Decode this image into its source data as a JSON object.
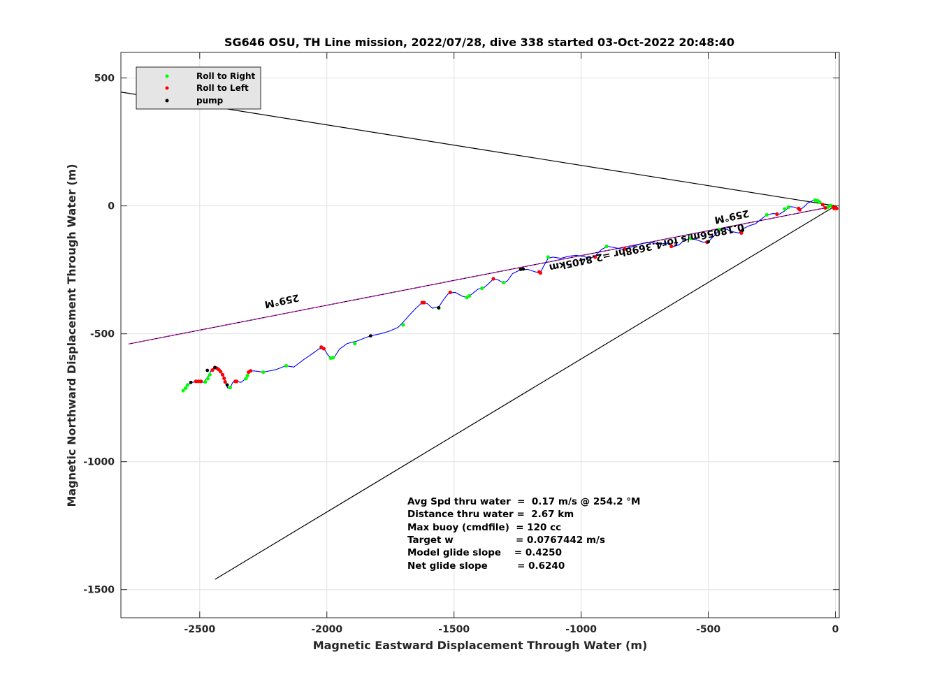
{
  "chart_data": {
    "type": "scatter",
    "title": "SG646 OSU, TH Line mission, 2022/07/28, dive 338 started 03-Oct-2022 20:48:40",
    "xlabel": "Magnetic Eastward Displacement Through Water (m)",
    "ylabel": "Magnetic Northward Displacement Through Water (m)",
    "xlim": [
      -2810,
      15
    ],
    "ylim": [
      -1610,
      600
    ],
    "xticks": [
      -2500,
      -2000,
      -1500,
      -1000,
      -500,
      0
    ],
    "yticks": [
      500,
      0,
      -500,
      -1000,
      -1500
    ],
    "xtick_labels": [
      "-2500",
      "-2000",
      "-1500",
      "-1000",
      "-500",
      "0"
    ],
    "ytick_labels": [
      "500",
      "0",
      "-500",
      "-1000",
      "-1500"
    ],
    "grid": true,
    "legend_position": "top-left",
    "legend": [
      {
        "label": "Roll to Right",
        "color": "#00ff00"
      },
      {
        "label": "Roll to Left",
        "color": "#ff0000"
      },
      {
        "label": "pump",
        "color": "#000000"
      }
    ],
    "track_color": "#0000ff",
    "track": [
      [
        -2565,
        -722
      ],
      [
        -2548,
        -700
      ],
      [
        -2530,
        -690
      ],
      [
        -2505,
        -686
      ],
      [
        -2485,
        -690
      ],
      [
        -2468,
        -668
      ],
      [
        -2455,
        -642
      ],
      [
        -2440,
        -632
      ],
      [
        -2425,
        -640
      ],
      [
        -2410,
        -660
      ],
      [
        -2400,
        -688
      ],
      [
        -2390,
        -712
      ],
      [
        -2380,
        -710
      ],
      [
        -2370,
        -690
      ],
      [
        -2355,
        -686
      ],
      [
        -2338,
        -690
      ],
      [
        -2318,
        -675
      ],
      [
        -2305,
        -647
      ],
      [
        -2288,
        -645
      ],
      [
        -2250,
        -650
      ],
      [
        -2200,
        -640
      ],
      [
        -2160,
        -625
      ],
      [
        -2130,
        -630
      ],
      [
        -2090,
        -600
      ],
      [
        -2060,
        -580
      ],
      [
        -2030,
        -558
      ],
      [
        -2010,
        -560
      ],
      [
        -1998,
        -580
      ],
      [
        -1985,
        -595
      ],
      [
        -1970,
        -590
      ],
      [
        -1950,
        -560
      ],
      [
        -1920,
        -538
      ],
      [
        -1880,
        -528
      ],
      [
        -1850,
        -516
      ],
      [
        -1828,
        -508
      ],
      [
        -1790,
        -500
      ],
      [
        -1755,
        -490
      ],
      [
        -1720,
        -475
      ],
      [
        -1700,
        -455
      ],
      [
        -1678,
        -430
      ],
      [
        -1650,
        -400
      ],
      [
        -1625,
        -378
      ],
      [
        -1605,
        -382
      ],
      [
        -1585,
        -400
      ],
      [
        -1560,
        -395
      ],
      [
        -1540,
        -365
      ],
      [
        -1520,
        -340
      ],
      [
        -1495,
        -338
      ],
      [
        -1470,
        -352
      ],
      [
        -1450,
        -358
      ],
      [
        -1430,
        -345
      ],
      [
        -1405,
        -325
      ],
      [
        -1385,
        -322
      ],
      [
        -1365,
        -305
      ],
      [
        -1345,
        -285
      ],
      [
        -1325,
        -290
      ],
      [
        -1305,
        -302
      ],
      [
        -1290,
        -293
      ],
      [
        -1270,
        -265
      ],
      [
        -1240,
        -250
      ],
      [
        -1210,
        -248
      ],
      [
        -1180,
        -258
      ],
      [
        -1160,
        -262
      ],
      [
        -1150,
        -240
      ],
      [
        -1130,
        -205
      ],
      [
        -1110,
        -200
      ],
      [
        -1080,
        -205
      ],
      [
        -1050,
        -197
      ],
      [
        -1020,
        -193
      ],
      [
        -990,
        -198
      ],
      [
        -965,
        -205
      ],
      [
        -945,
        -196
      ],
      [
        -920,
        -170
      ],
      [
        -895,
        -158
      ],
      [
        -870,
        -163
      ],
      [
        -835,
        -170
      ],
      [
        -800,
        -160
      ],
      [
        -770,
        -150
      ],
      [
        -740,
        -142
      ],
      [
        -715,
        -145
      ],
      [
        -690,
        -150
      ],
      [
        -665,
        -145
      ],
      [
        -640,
        -160
      ],
      [
        -615,
        -152
      ],
      [
        -595,
        -135
      ],
      [
        -570,
        -127
      ],
      [
        -545,
        -133
      ],
      [
        -520,
        -142
      ],
      [
        -500,
        -140
      ],
      [
        -480,
        -120
      ],
      [
        -455,
        -92
      ],
      [
        -430,
        -90
      ],
      [
        -410,
        -100
      ],
      [
        -380,
        -106
      ],
      [
        -365,
        -90
      ],
      [
        -340,
        -78
      ],
      [
        -315,
        -70
      ],
      [
        -292,
        -52
      ],
      [
        -270,
        -35
      ],
      [
        -245,
        -30
      ],
      [
        -220,
        -32
      ],
      [
        -200,
        -20
      ],
      [
        -180,
        -3
      ],
      [
        -160,
        -5
      ],
      [
        -140,
        -15
      ],
      [
        -125,
        -5
      ],
      [
        -110,
        10
      ],
      [
        -85,
        23
      ],
      [
        -70,
        20
      ],
      [
        -50,
        5
      ],
      [
        -40,
        -10
      ],
      [
        -28,
        -5
      ],
      [
        -20,
        3
      ],
      [
        -10,
        -2
      ],
      [
        -2,
        -5
      ],
      [
        5,
        -8
      ],
      [
        0,
        -12
      ],
      [
        -8,
        -8
      ],
      [
        -2,
        -3
      ]
    ],
    "roll_right_points": [
      [
        -2565,
        -722
      ],
      [
        -2555,
        -712
      ],
      [
        -2548,
        -700
      ],
      [
        -2478,
        -688
      ],
      [
        -2468,
        -675
      ],
      [
        -2460,
        -660
      ],
      [
        -2380,
        -710
      ],
      [
        -2318,
        -675
      ],
      [
        -2312,
        -663
      ],
      [
        -2250,
        -650
      ],
      [
        -2160,
        -625
      ],
      [
        -1985,
        -595
      ],
      [
        -1975,
        -593
      ],
      [
        -1890,
        -538
      ],
      [
        -1700,
        -465
      ],
      [
        -1560,
        -400
      ],
      [
        -1450,
        -358
      ],
      [
        -1440,
        -352
      ],
      [
        -1390,
        -322
      ],
      [
        -1305,
        -300
      ],
      [
        -1130,
        -200
      ],
      [
        -900,
        -158
      ],
      [
        -570,
        -127
      ],
      [
        -455,
        -92
      ],
      [
        -270,
        -35
      ],
      [
        -200,
        -12
      ],
      [
        -185,
        -5
      ],
      [
        -80,
        22
      ],
      [
        -70,
        20
      ],
      [
        -62,
        15
      ],
      [
        -18,
        1
      ],
      [
        -10,
        -2
      ],
      [
        -30,
        -5
      ]
    ],
    "roll_left_points": [
      [
        -2515,
        -686
      ],
      [
        -2505,
        -686
      ],
      [
        -2495,
        -686
      ],
      [
        -2450,
        -642
      ],
      [
        -2440,
        -632
      ],
      [
        -2432,
        -635
      ],
      [
        -2425,
        -640
      ],
      [
        -2418,
        -648
      ],
      [
        -2410,
        -660
      ],
      [
        -2404,
        -674
      ],
      [
        -2400,
        -688
      ],
      [
        -2360,
        -686
      ],
      [
        -2355,
        -686
      ],
      [
        -2308,
        -650
      ],
      [
        -2300,
        -645
      ],
      [
        -2022,
        -552
      ],
      [
        -2012,
        -558
      ],
      [
        -1625,
        -378
      ],
      [
        -1618,
        -378
      ],
      [
        -1515,
        -338
      ],
      [
        -1345,
        -285
      ],
      [
        -1165,
        -258
      ],
      [
        -1160,
        -262
      ],
      [
        -945,
        -200
      ],
      [
        -830,
        -168
      ],
      [
        -645,
        -158
      ],
      [
        -505,
        -142
      ],
      [
        -370,
        -106
      ],
      [
        -230,
        -32
      ],
      [
        -145,
        -10
      ],
      [
        -140,
        -15
      ],
      [
        -50,
        5
      ],
      [
        -40,
        -8
      ],
      [
        5,
        -10
      ],
      [
        -5,
        -10
      ],
      [
        0,
        -5
      ],
      [
        -8,
        -3
      ]
    ],
    "pump_points": [
      [
        -2535,
        -690
      ],
      [
        -2440,
        -632
      ],
      [
        -2470,
        -643
      ],
      [
        -2392,
        -700
      ],
      [
        -1828,
        -508
      ],
      [
        -1560,
        -398
      ],
      [
        -1238,
        -248
      ],
      [
        -1228,
        -247
      ],
      [
        -500,
        -140
      ],
      [
        -365,
        -95
      ]
    ],
    "reference_lines": [
      {
        "from": [
          -2810,
          445
        ],
        "to": [
          0,
          0
        ],
        "color": "#000000"
      },
      {
        "from": [
          -2780,
          -540
        ],
        "to": [
          0,
          0
        ],
        "color": "#000000"
      },
      {
        "from": [
          -2440,
          -1460
        ],
        "to": [
          0,
          0
        ],
        "color": "#000000"
      },
      {
        "from": [
          -2780,
          -540
        ],
        "to": [
          0,
          0
        ],
        "color": "#ff00ff",
        "dashed": true
      }
    ],
    "line_annotations": [
      {
        "text": "259°M",
        "x": -2180,
        "y": -360,
        "rotation": 168
      },
      {
        "text": "259°M",
        "x": -410,
        "y": -30,
        "rotation": 168
      },
      {
        "text": "0.18056m/s for4.3698hr =2.8405km",
        "x": -745,
        "y": -150,
        "rotation": 168
      }
    ],
    "stats": [
      "Avg Spd thru water  =  0.17 m/s @ 254.2 °M",
      "Distance thru water =  2.67 km",
      "Max buoy (cmdfile)  = 120 cc",
      "Target w                   = 0.0767442 m/s",
      "Model glide slope    = 0.4250",
      "Net glide slope         = 0.6240"
    ]
  }
}
